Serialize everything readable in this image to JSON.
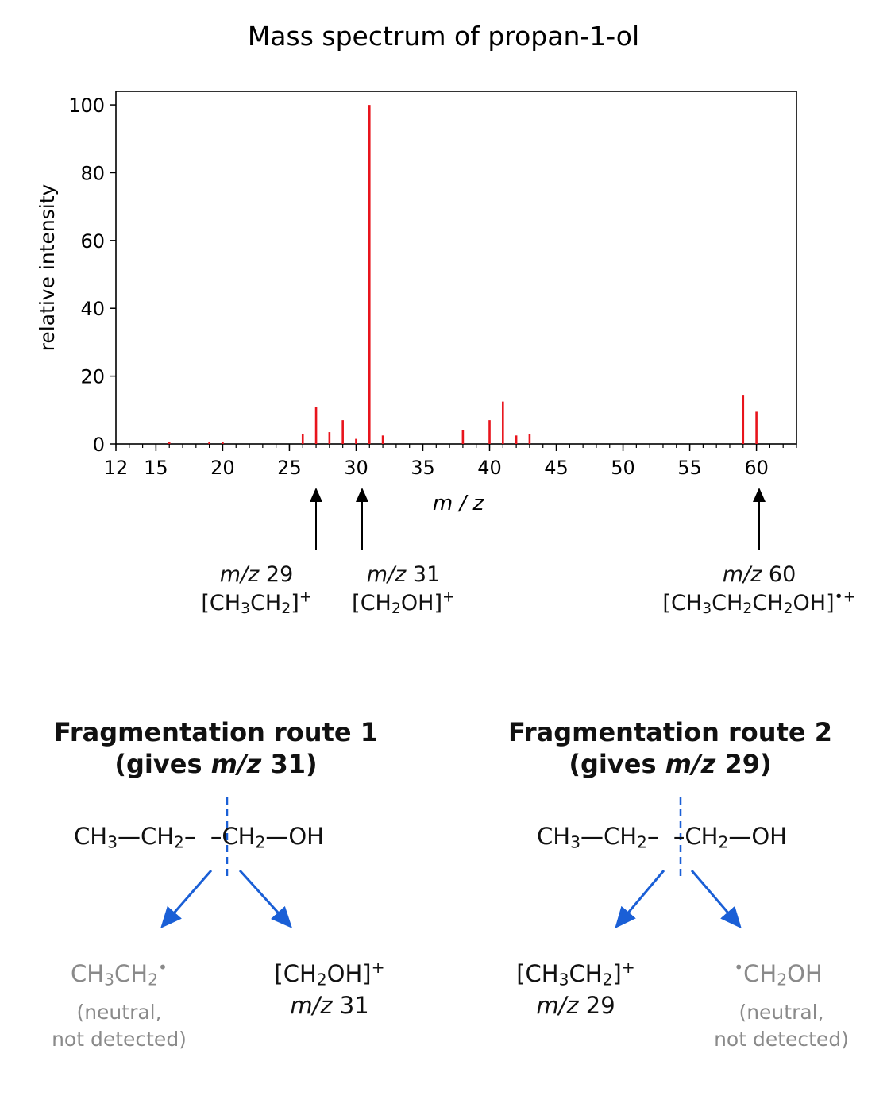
{
  "chart_data": {
    "type": "bar",
    "title": "Mass spectrum of propan-1-ol",
    "xlabel": "m / z",
    "ylabel": "relative intensity",
    "xlim": [
      12,
      63
    ],
    "ylim": [
      0,
      104
    ],
    "xticks": [
      12,
      15,
      20,
      25,
      30,
      35,
      40,
      45,
      50,
      55,
      60
    ],
    "yticks": [
      0,
      20,
      40,
      60,
      80,
      100
    ],
    "color": "#e8141c",
    "x": [
      16,
      19,
      20,
      26,
      27,
      28,
      29,
      30,
      31,
      32,
      38,
      40,
      41,
      42,
      43,
      59,
      60
    ],
    "values": [
      0.5,
      0.5,
      0.5,
      3,
      11,
      3.5,
      7,
      1.5,
      100,
      2.5,
      4,
      7,
      12.5,
      2.5,
      3,
      14.5,
      9.5
    ]
  },
  "title": "Mass spectrum of propan-1-ol",
  "annotations": [
    {
      "mz_label": "m/z",
      "mz_value": "29",
      "ion": "[CH3CH2]+"
    },
    {
      "mz_label": "m/z",
      "mz_value": "31",
      "ion": "[CH2OH]+"
    },
    {
      "mz_label": "m/z",
      "mz_value": "60",
      "ion": "[CH3CH2CH2OH]•+"
    }
  ],
  "routes": [
    {
      "title": "Fragmentation route 1",
      "subtitle_pre": "(gives ",
      "subtitle_mz": "m/z",
      "subtitle_post": " 31)",
      "molecule": "CH3—CH2–¦–CH2—OH",
      "left_product": "CH3CH2•",
      "left_note_1": "(neutral,",
      "left_note_2": "not detected)",
      "right_product": "[CH2OH]+",
      "right_mz_label": "m/z",
      "right_mz_value": "31"
    },
    {
      "title": "Fragmentation route 2",
      "subtitle_pre": "(gives ",
      "subtitle_mz": "m/z",
      "subtitle_post": " 29)",
      "molecule": "CH3—CH2–¦–CH2—OH",
      "left_product": "[CH3CH2]+",
      "left_mz_label": "m/z",
      "left_mz_value": "29",
      "right_product": "•CH2OH",
      "right_note_1": "(neutral,",
      "right_note_2": "not detected)"
    }
  ],
  "colors": {
    "peak": "#e8141c",
    "arrow_blue": "#1a5fd6",
    "neutral": "#8a8a8a"
  }
}
